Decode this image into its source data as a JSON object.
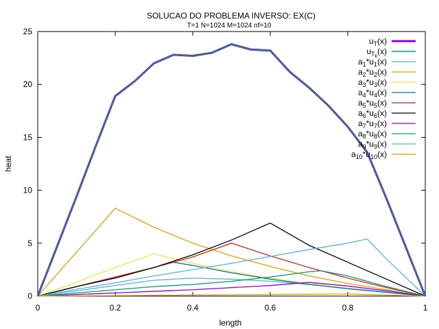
{
  "chart_data": {
    "type": "line",
    "title": "SOLUCAO DO PROBLEMA INVERSO: EX(C)",
    "subtitle": "T=1 N=1024 M=1024 nf=10",
    "xlabel": "length",
    "ylabel": "heat",
    "xlim": [
      0,
      1
    ],
    "ylim": [
      0,
      25
    ],
    "xticks": [
      {
        "v": 0,
        "label": "0"
      },
      {
        "v": 0.2,
        "label": "0.2"
      },
      {
        "v": 0.4,
        "label": "0.4"
      },
      {
        "v": 0.6,
        "label": "0.6"
      },
      {
        "v": 0.8,
        "label": "0.8"
      },
      {
        "v": 1,
        "label": "1"
      }
    ],
    "yticks": [
      {
        "v": 0,
        "label": "0"
      },
      {
        "v": 5,
        "label": "5"
      },
      {
        "v": 10,
        "label": "10"
      },
      {
        "v": 15,
        "label": "15"
      },
      {
        "v": 20,
        "label": "20"
      },
      {
        "v": 25,
        "label": "25"
      }
    ],
    "grid": false,
    "legend": "top-right",
    "series": [
      {
        "key": "uT",
        "label": "u",
        "sub": "T",
        "suffix": "(x)",
        "color": "#9400d3",
        "width": 3,
        "x": [
          0,
          0.05,
          0.1,
          0.15,
          0.2,
          0.25,
          0.3,
          0.35,
          0.4,
          0.45,
          0.5,
          0.55,
          0.6,
          0.65,
          0.7,
          0.75,
          0.8,
          0.85,
          0.9,
          0.95,
          1
        ],
        "y": [
          0,
          4.7,
          9.4,
          14.2,
          18.9,
          20.3,
          22.0,
          22.8,
          22.7,
          23.0,
          23.8,
          23.3,
          23.2,
          21.2,
          19.7,
          18.0,
          16.0,
          13.6,
          9.2,
          4.6,
          0
        ]
      },
      {
        "key": "uTk",
        "label": "u",
        "sub": "T",
        "subsub": "k",
        "suffix": "(x)",
        "color": "#009e73",
        "width": 1.5,
        "x": [
          0,
          0.05,
          0.1,
          0.15,
          0.2,
          0.25,
          0.3,
          0.35,
          0.4,
          0.45,
          0.5,
          0.55,
          0.6,
          0.65,
          0.7,
          0.75,
          0.8,
          0.85,
          0.9,
          0.95,
          1
        ],
        "y": [
          0,
          4.7,
          9.4,
          14.2,
          18.9,
          20.3,
          22.0,
          22.8,
          22.7,
          23.0,
          23.8,
          23.3,
          23.2,
          21.2,
          19.7,
          18.0,
          16.0,
          13.6,
          9.2,
          4.6,
          0
        ]
      },
      {
        "key": "a1",
        "label": "a",
        "sub": "1",
        "mid": "*u",
        "sub2": "1",
        "suffix": "(x)",
        "color": "#56b4e9",
        "width": 1.3,
        "x": [
          0,
          0.1,
          0.2,
          0.3,
          0.4,
          0.5,
          0.6,
          0.7,
          0.8,
          0.9,
          1
        ],
        "y": [
          0,
          0.5,
          1.0,
          1.5,
          1.7,
          1.6,
          1.4,
          1.1,
          0.75,
          0.4,
          0
        ]
      },
      {
        "key": "a2",
        "label": "a",
        "sub": "2",
        "mid": "*u",
        "sub2": "2",
        "suffix": "(x)",
        "color": "#e69f00",
        "width": 1.3,
        "x": [
          0,
          0.2,
          0.3,
          0.4,
          0.5,
          0.6,
          0.7,
          0.8,
          0.9,
          1
        ],
        "y": [
          0,
          8.3,
          6.5,
          5.0,
          3.8,
          2.8,
          1.9,
          1.2,
          0.6,
          0
        ]
      },
      {
        "key": "a3",
        "label": "a",
        "sub": "3",
        "mid": "*u",
        "sub2": "3",
        "suffix": "(x)",
        "color": "#f0e442",
        "width": 1.3,
        "x": [
          0,
          0.1,
          0.2,
          0.3,
          0.4,
          0.5,
          0.6,
          0.7,
          0.8,
          0.9,
          1
        ],
        "y": [
          0,
          1.3,
          2.7,
          4.0,
          3.1,
          2.3,
          1.7,
          1.2,
          0.75,
          0.35,
          0
        ]
      },
      {
        "key": "a4",
        "label": "a",
        "sub": "4",
        "mid": "*u",
        "sub2": "4",
        "suffix": "(x)",
        "color": "#0072b2",
        "width": 1.3,
        "x": [
          0,
          0.1,
          0.2,
          0.3,
          0.35,
          0.4,
          0.5,
          0.6,
          0.7,
          0.8,
          0.9,
          1
        ],
        "y": [
          0,
          0.9,
          1.8,
          2.7,
          3.2,
          2.9,
          2.2,
          1.6,
          1.1,
          0.7,
          0.35,
          0
        ]
      },
      {
        "key": "a5",
        "label": "a",
        "sub": "5",
        "mid": "*u",
        "sub2": "5",
        "suffix": "(x)",
        "color": "#e51e10",
        "width": 1.3,
        "x": [
          0,
          0.1,
          0.2,
          0.3,
          0.4,
          0.5,
          0.6,
          0.7,
          0.8,
          0.9,
          1
        ],
        "y": [
          0,
          0.9,
          1.8,
          2.7,
          3.7,
          5.0,
          3.8,
          2.7,
          1.7,
          0.8,
          0
        ]
      },
      {
        "key": "a6",
        "label": "a",
        "sub": "6",
        "mid": "*u",
        "sub2": "6",
        "suffix": "(x)",
        "color": "#000000",
        "width": 1.3,
        "x": [
          0,
          0.1,
          0.2,
          0.3,
          0.4,
          0.5,
          0.6,
          0.7,
          0.8,
          0.9,
          1
        ],
        "y": [
          0,
          0.9,
          1.7,
          2.7,
          3.9,
          5.3,
          6.9,
          4.8,
          3.2,
          1.6,
          0
        ]
      },
      {
        "key": "a7",
        "label": "a",
        "sub": "7",
        "mid": "*u",
        "sub2": "7",
        "suffix": "(x)",
        "color": "#9400d3",
        "width": 1.3,
        "x": [
          0,
          0.1,
          0.2,
          0.3,
          0.4,
          0.5,
          0.6,
          0.7,
          0.8,
          0.9,
          1
        ],
        "y": [
          0,
          0.15,
          0.3,
          0.45,
          0.6,
          0.8,
          1.0,
          1.3,
          0.95,
          0.5,
          0
        ]
      },
      {
        "key": "a8",
        "label": "a",
        "sub": "8",
        "mid": "*u",
        "sub2": "8",
        "suffix": "(x)",
        "color": "#009e73",
        "width": 1.3,
        "x": [
          0,
          0.1,
          0.2,
          0.3,
          0.4,
          0.5,
          0.6,
          0.7,
          0.73,
          0.8,
          0.9,
          1
        ],
        "y": [
          0,
          0.3,
          0.6,
          0.9,
          1.1,
          1.4,
          1.8,
          2.3,
          2.4,
          1.9,
          0.9,
          0
        ]
      },
      {
        "key": "a9",
        "label": "a",
        "sub": "9",
        "mid": "*u",
        "sub2": "9",
        "suffix": "(x)",
        "color": "#56b4e9",
        "width": 1.3,
        "x": [
          0,
          0.1,
          0.2,
          0.3,
          0.4,
          0.5,
          0.6,
          0.7,
          0.8,
          0.85,
          0.9,
          1
        ],
        "y": [
          0,
          0.65,
          1.25,
          1.9,
          2.5,
          3.1,
          3.75,
          4.4,
          5.0,
          5.4,
          3.5,
          0
        ]
      },
      {
        "key": "a10",
        "label": "a",
        "sub": "10",
        "mid": "*u",
        "sub2": "10",
        "suffix": "(x)",
        "color": "#e69f00",
        "width": 1.3,
        "x": [
          0,
          0.2,
          0.4,
          0.6,
          0.8,
          1
        ],
        "y": [
          0,
          0.05,
          0.1,
          0.15,
          0.2,
          0
        ]
      }
    ]
  }
}
